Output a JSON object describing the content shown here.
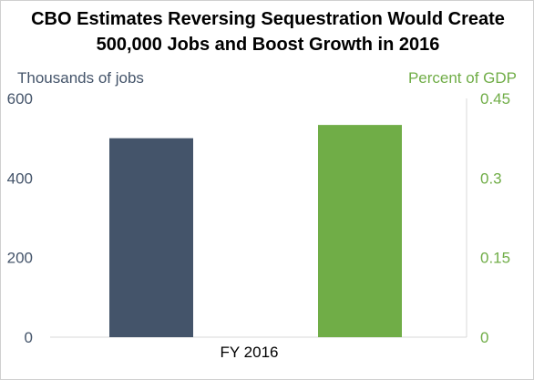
{
  "chart_data": {
    "type": "bar",
    "title": [
      "CBO Estimates Reversing Sequestration Would Create",
      "500,000 Jobs and Boost Growth in 2016"
    ],
    "categories": [
      "FY 2016"
    ],
    "series": [
      {
        "name": "Thousands of jobs",
        "axis": "left",
        "color": "#44546a",
        "values": [
          500
        ]
      },
      {
        "name": "Percent of GDP",
        "axis": "right",
        "color": "#70ad47",
        "values": [
          0.4
        ]
      }
    ],
    "left_axis": {
      "label": "Thousands of jobs",
      "color": "#44546a",
      "ylim": [
        0,
        600
      ],
      "ticks": [
        0,
        200,
        400,
        600
      ],
      "tick_labels": [
        "0",
        "200",
        "400",
        "600"
      ]
    },
    "right_axis": {
      "label": "Percent of GDP",
      "color": "#70ad47",
      "ylim": [
        0,
        0.45
      ],
      "ticks": [
        0,
        0.15,
        0.3,
        0.45
      ],
      "tick_labels": [
        "0",
        "0.15",
        "0.3",
        "0.45"
      ]
    },
    "grid": false,
    "legend": "none"
  }
}
